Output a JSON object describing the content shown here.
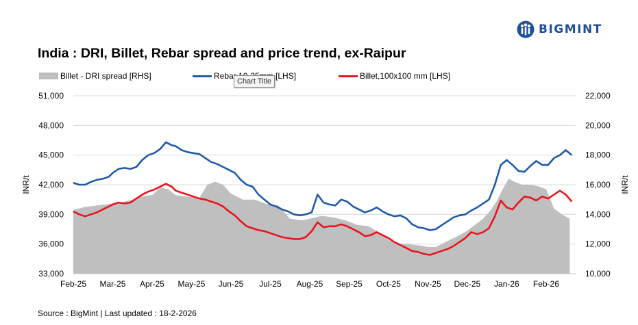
{
  "brand": {
    "name": "BIGMINT",
    "color": "#1f4e9a"
  },
  "tooltip": "Chart Title",
  "source": "Source : BigMint | Last updated : 18-2-2026",
  "colors": {
    "spread_fill": "#bfbfbf",
    "rebar": "#1f5ba8",
    "billet": "#e8141b",
    "grid": "#d9d9d9"
  },
  "chart_data": {
    "type": "line",
    "title": "India : DRI, Billet, Rebar spread and price trend, ex-Raipur",
    "ylabel": "INR/t",
    "ylabel_right": "INR/t",
    "ylim": [
      33000,
      51000
    ],
    "ylim_right": [
      10000,
      22000
    ],
    "yticks": [
      "51,000",
      "48,000",
      "45,000",
      "42,000",
      "39,000",
      "36,000",
      "33,000"
    ],
    "yticks_right": [
      "22,000",
      "20,000",
      "18,000",
      "16,000",
      "14,000",
      "12,000",
      "10,000"
    ],
    "x_labels": [
      "Feb-25",
      "Mar-25",
      "Apr-25",
      "May-25",
      "Jun-25",
      "Jul-25",
      "Aug-25",
      "Sep-25",
      "Oct-25",
      "Nov-25",
      "Dec-25",
      "Jan-26",
      "Feb-26"
    ],
    "x_month_values": [
      0,
      1,
      2,
      3,
      4,
      5,
      6,
      7,
      8,
      9,
      10,
      11,
      12
    ],
    "grid": "horizontal",
    "legend_position": "top",
    "series": [
      {
        "name": "Billet - DRI spread  [RHS]",
        "kind": "area",
        "axis": "right",
        "x": [
          0,
          0.3,
          0.6,
          0.9,
          1.2,
          1.5,
          1.7,
          2.0,
          2.2,
          2.4,
          2.6,
          2.9,
          3.2,
          3.4,
          3.6,
          3.8,
          4.0,
          4.3,
          4.6,
          4.9,
          5.2,
          5.5,
          5.8,
          6.0,
          6.3,
          6.6,
          6.9,
          7.2,
          7.5,
          7.8,
          8.0,
          8.2,
          8.5,
          8.8,
          9.0,
          9.2,
          9.5,
          9.8,
          10.0,
          10.2,
          10.4,
          10.6,
          10.75,
          10.9,
          11.05,
          11.2,
          11.4,
          11.6,
          11.8,
          12.0,
          12.2,
          12.4,
          12.6
        ],
        "y": [
          14300,
          14500,
          14600,
          14700,
          14800,
          15000,
          15200,
          15300,
          15800,
          15700,
          15300,
          15200,
          15100,
          16000,
          16200,
          16000,
          15400,
          15000,
          15000,
          14700,
          14600,
          13700,
          13600,
          13700,
          13900,
          13800,
          13600,
          13300,
          13200,
          12700,
          12300,
          12000,
          12000,
          11900,
          11800,
          11800,
          12200,
          12600,
          12900,
          13300,
          13700,
          14300,
          14900,
          15700,
          16400,
          16200,
          16000,
          16000,
          15900,
          15700,
          14400,
          14000,
          13700
        ]
      },
      {
        "name": "Rebar 10-25mm [LHS]",
        "kind": "line",
        "axis": "left",
        "x": [
          0,
          0.15,
          0.3,
          0.45,
          0.6,
          0.75,
          0.9,
          1.0,
          1.15,
          1.3,
          1.45,
          1.6,
          1.75,
          1.9,
          2.05,
          2.2,
          2.35,
          2.5,
          2.6,
          2.75,
          2.9,
          3.05,
          3.2,
          3.35,
          3.5,
          3.65,
          3.8,
          3.95,
          4.1,
          4.25,
          4.4,
          4.55,
          4.7,
          4.85,
          5.0,
          5.15,
          5.3,
          5.45,
          5.6,
          5.75,
          5.9,
          6.05,
          6.2,
          6.35,
          6.5,
          6.65,
          6.8,
          6.95,
          7.1,
          7.25,
          7.4,
          7.55,
          7.7,
          7.85,
          8.0,
          8.15,
          8.3,
          8.45,
          8.6,
          8.75,
          8.9,
          9.05,
          9.2,
          9.35,
          9.5,
          9.65,
          9.8,
          9.95,
          10.1,
          10.25,
          10.4,
          10.55,
          10.7,
          10.85,
          11.0,
          11.15,
          11.3,
          11.45,
          11.6,
          11.75,
          11.9,
          12.05,
          12.2,
          12.35,
          12.5,
          12.65
        ],
        "y": [
          42200,
          42000,
          42000,
          42300,
          42500,
          42600,
          42800,
          43200,
          43600,
          43700,
          43600,
          43800,
          44500,
          45000,
          45200,
          45600,
          46300,
          46000,
          45900,
          45500,
          45300,
          45200,
          45100,
          44700,
          44300,
          44100,
          43800,
          43500,
          43200,
          42500,
          42000,
          41800,
          41000,
          40500,
          40000,
          39800,
          39500,
          39300,
          39000,
          38900,
          39000,
          39200,
          41000,
          40200,
          40000,
          39900,
          40500,
          40300,
          39800,
          39500,
          39200,
          39400,
          39700,
          39300,
          39000,
          38800,
          38900,
          38600,
          38000,
          37700,
          37600,
          37400,
          37500,
          37900,
          38300,
          38700,
          38900,
          39000,
          39400,
          39700,
          40100,
          40500,
          42000,
          44000,
          44500,
          44000,
          43400,
          43300,
          43900,
          44400,
          44000,
          44000,
          44700,
          45000,
          45500,
          45000
        ]
      },
      {
        "name": "Billet,100x100 mm [LHS]",
        "kind": "line",
        "axis": "left",
        "x": [
          0,
          0.15,
          0.3,
          0.45,
          0.6,
          0.75,
          0.9,
          1.0,
          1.15,
          1.3,
          1.45,
          1.6,
          1.75,
          1.9,
          2.05,
          2.2,
          2.35,
          2.5,
          2.6,
          2.75,
          2.9,
          3.05,
          3.2,
          3.35,
          3.5,
          3.65,
          3.8,
          3.95,
          4.1,
          4.25,
          4.4,
          4.55,
          4.7,
          4.85,
          5.0,
          5.15,
          5.3,
          5.45,
          5.6,
          5.75,
          5.9,
          6.05,
          6.2,
          6.35,
          6.5,
          6.65,
          6.8,
          6.95,
          7.1,
          7.25,
          7.4,
          7.55,
          7.7,
          7.85,
          8.0,
          8.15,
          8.3,
          8.45,
          8.6,
          8.75,
          8.9,
          9.05,
          9.2,
          9.35,
          9.5,
          9.65,
          9.8,
          9.95,
          10.1,
          10.25,
          10.4,
          10.55,
          10.7,
          10.85,
          11.0,
          11.15,
          11.3,
          11.45,
          11.6,
          11.75,
          11.9,
          12.05,
          12.2,
          12.35,
          12.5,
          12.65
        ],
        "y": [
          39300,
          39000,
          38800,
          39000,
          39200,
          39500,
          39800,
          40000,
          40200,
          40100,
          40200,
          40600,
          41000,
          41300,
          41500,
          41800,
          42100,
          41800,
          41400,
          41200,
          41000,
          40800,
          40600,
          40500,
          40300,
          40100,
          39800,
          39300,
          38900,
          38300,
          37800,
          37600,
          37400,
          37300,
          37100,
          36900,
          36700,
          36600,
          36500,
          36500,
          36700,
          37300,
          38200,
          37700,
          37800,
          37800,
          38000,
          37800,
          37500,
          37200,
          36800,
          36900,
          37200,
          36900,
          36600,
          36200,
          35900,
          35600,
          35300,
          35200,
          35000,
          34900,
          35100,
          35300,
          35500,
          35800,
          36200,
          36600,
          37200,
          37000,
          37200,
          37600,
          38800,
          40400,
          39700,
          39500,
          40200,
          40800,
          40700,
          40400,
          40800,
          40600,
          41000,
          41400,
          41000,
          40300
        ]
      }
    ]
  }
}
